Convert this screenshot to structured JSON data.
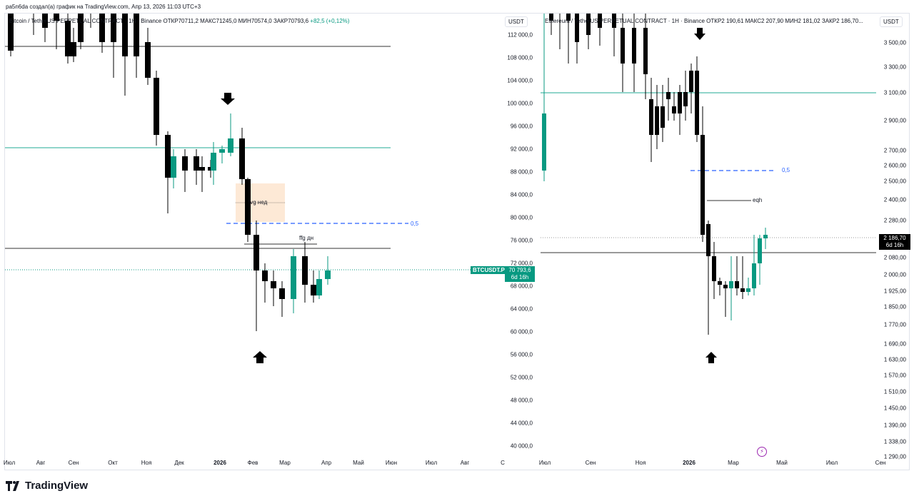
{
  "header": {
    "title": "pa5n6da создал(а) график на TradingView.com, Апр 13, 2026 11:03 UTC+3"
  },
  "left": {
    "ticker": {
      "name": "Bitcoin / TetherUS PERPETUAL CONTRACT · 1H · Binance",
      "ohlc": "ОТКР70711,2 МАКС71245,0 МИН70574,0 ЗАКР70793,6",
      "change": "+82,5 (+0,12%)"
    },
    "unit": "USDT",
    "price_labels": [
      "112 000,0",
      "108 000,0",
      "104 000,0",
      "100 000,0",
      "96 000,0",
      "92 000,0",
      "88 000,0",
      "84 000,0",
      "80 000,0",
      "76 000,0",
      "72 000,0",
      "68 000,0",
      "64 000,0",
      "60 000,0",
      "56 000,0",
      "52 000,0",
      "48 000,0",
      "44 000,0",
      "40 000,0"
    ],
    "time_labels": [
      "Июл",
      "Авг",
      "Сен",
      "Окт",
      "Ноя",
      "Дек",
      "2026",
      "Фев",
      "Мар",
      "Апр",
      "Май",
      "Июн",
      "Июл",
      "Авг",
      "С"
    ],
    "symbol_tag": "BTCUSDT.P",
    "price_tag": {
      "price": "70 793,6",
      "countdown": "6d 16h"
    },
    "annotations": {
      "fvg": "fvg нед",
      "ffg": "ffg дн",
      "fib": "0,5"
    },
    "colors": {
      "up": "#089981",
      "down": "#000000",
      "hline": "#333333",
      "cyanline": "#22ab94",
      "fib": "#2962ff",
      "fvgbox": "#fde9d6"
    }
  },
  "right": {
    "ticker": {
      "name": "Ethereum / TetherUS PERPETUAL CONTRACT · 1H · Binance",
      "ohlc": "ОТКР2 190,61 МАКС2 207,90 МИН2 181,02 ЗАКР2 186,70..."
    },
    "unit": "USDT",
    "price_labels": [
      "3 500,00",
      "3 300,00",
      "3 100,00",
      "2 900,00",
      "2 700,00",
      "2 600,00",
      "2 500,00",
      "2 400,00",
      "2 280,00",
      "2 080,00",
      "2 000,00",
      "1 925,00",
      "1 850,00",
      "1 770,00",
      "1 690,00",
      "1 630,00",
      "1 570,00",
      "1 510,00",
      "1 450,00",
      "1 390,00",
      "1 338,00",
      "1 290,00"
    ],
    "time_labels": [
      "Июл",
      "Сен",
      "Ноя",
      "2026",
      "Мар",
      "Май",
      "Июл",
      "Сен"
    ],
    "price_tag": {
      "price": "2 186,70",
      "countdown": "6d 16h"
    },
    "annotations": {
      "eqh": "eqh",
      "fib": "0,5"
    }
  },
  "branding": {
    "logo_text": "TradingView"
  }
}
